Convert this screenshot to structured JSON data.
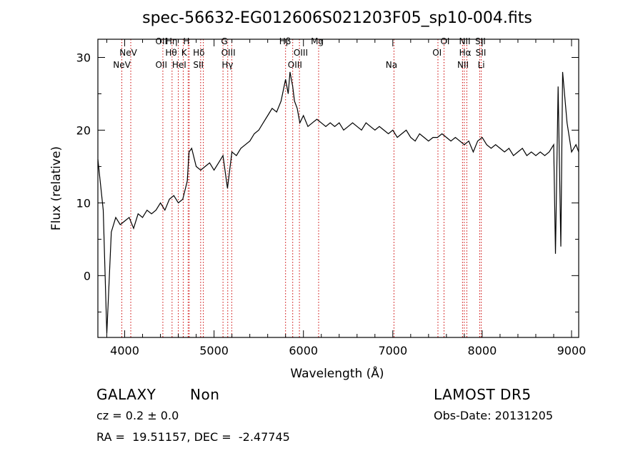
{
  "chart_data": {
    "type": "line",
    "title": "spec-56632-EG012606S021203F05_sp10-004.fits",
    "xlabel": "Wavelength (Å)",
    "ylabel": "Flux (relative)",
    "xlim": [
      3700,
      9080
    ],
    "ylim": [
      -8.5,
      32.5
    ],
    "xticks": [
      4000,
      5000,
      6000,
      7000,
      8000,
      9000
    ],
    "yticks": [
      0,
      10,
      20,
      30
    ],
    "grid": false,
    "series": [
      {
        "x": [
          3700,
          3760,
          3800,
          3850,
          3900,
          3950,
          4000,
          4050,
          4100,
          4150,
          4200,
          4250,
          4300,
          4350,
          4400,
          4450,
          4500,
          4550,
          4600,
          4650,
          4700,
          4720,
          4750,
          4800,
          4850,
          4900,
          4950,
          5000,
          5050,
          5100,
          5150,
          5200,
          5250,
          5300,
          5350,
          5400,
          5450,
          5500,
          5550,
          5600,
          5650,
          5700,
          5750,
          5800,
          5830,
          5850,
          5880,
          5900,
          5930,
          5960,
          6000,
          6050,
          6100,
          6150,
          6200,
          6250,
          6300,
          6350,
          6400,
          6450,
          6500,
          6550,
          6600,
          6650,
          6700,
          6750,
          6800,
          6850,
          6900,
          6950,
          7000,
          7050,
          7100,
          7150,
          7200,
          7250,
          7300,
          7350,
          7400,
          7450,
          7500,
          7550,
          7600,
          7650,
          7700,
          7750,
          7800,
          7850,
          7900,
          7950,
          8000,
          8050,
          8100,
          8150,
          8200,
          8250,
          8300,
          8350,
          8400,
          8450,
          8500,
          8550,
          8600,
          8650,
          8700,
          8750,
          8800,
          8820,
          8850,
          8880,
          8900,
          8950,
          9000,
          9050,
          9080
        ],
        "y": [
          16,
          9,
          -8,
          6,
          8,
          7,
          7.5,
          8,
          6.5,
          8.5,
          8,
          9,
          8.5,
          9,
          10,
          9,
          10.5,
          11,
          10,
          10.5,
          13,
          17,
          17.5,
          15,
          14.5,
          15,
          15.5,
          14.5,
          15.5,
          16.5,
          12,
          17,
          16.5,
          17.5,
          18,
          18.5,
          19.5,
          20,
          21,
          22,
          23,
          22.5,
          24,
          27,
          25,
          28,
          26,
          24,
          23,
          21,
          22,
          20.5,
          21,
          21.5,
          21,
          20.5,
          21,
          20.5,
          21,
          20,
          20.5,
          21,
          20.5,
          20,
          21,
          20.5,
          20,
          20.5,
          20,
          19.5,
          20,
          19,
          19.5,
          20,
          19,
          18.5,
          19.5,
          19,
          18.5,
          19,
          19,
          19.5,
          19,
          18.5,
          19,
          18.5,
          18,
          18.5,
          17,
          18.5,
          19,
          18,
          17.5,
          18,
          17.5,
          17,
          17.5,
          16.5,
          17,
          17.5,
          16.5,
          17,
          16.5,
          17,
          16.5,
          17,
          18,
          3,
          26,
          4,
          28,
          21,
          17,
          18,
          17
        ]
      }
    ],
    "annotations": [
      {
        "label": "NeV",
        "x": 3968,
        "row": 3
      },
      {
        "label": "NeV",
        "x": 4040,
        "row": 2
      },
      {
        "label": "OII",
        "x": 4410,
        "row": 3
      },
      {
        "label": "OII",
        "x": 4410,
        "row": 1
      },
      {
        "label": "Hη",
        "x": 4525,
        "row": 1
      },
      {
        "label": "Hθ",
        "x": 4520,
        "row": 2
      },
      {
        "label": "HeI",
        "x": 4610,
        "row": 3
      },
      {
        "label": "H",
        "x": 4690,
        "row": 1
      },
      {
        "label": "K",
        "x": 4665,
        "row": 2
      },
      {
        "label": "Hδ",
        "x": 4830,
        "row": 2
      },
      {
        "label": "SII",
        "x": 4825,
        "row": 3
      },
      {
        "label": "G",
        "x": 5115,
        "row": 1
      },
      {
        "label": "OIII",
        "x": 5160,
        "row": 2
      },
      {
        "label": "Hγ",
        "x": 5150,
        "row": 3
      },
      {
        "label": "Hβ",
        "x": 5795,
        "row": 1
      },
      {
        "label": "OIII",
        "x": 5970,
        "row": 2
      },
      {
        "label": "OIII",
        "x": 5905,
        "row": 3
      },
      {
        "label": "Mg",
        "x": 6155,
        "row": 1
      },
      {
        "label": "Na",
        "x": 6985,
        "row": 3
      },
      {
        "label": "OI",
        "x": 7495,
        "row": 2
      },
      {
        "label": "OI",
        "x": 7585,
        "row": 1
      },
      {
        "label": "NII",
        "x": 7805,
        "row": 1
      },
      {
        "label": "Hα",
        "x": 7810,
        "row": 2
      },
      {
        "label": "NII",
        "x": 7785,
        "row": 3
      },
      {
        "label": "SII",
        "x": 7980,
        "row": 1
      },
      {
        "label": "SII",
        "x": 7985,
        "row": 2
      },
      {
        "label": "Li",
        "x": 7990,
        "row": 3
      }
    ],
    "line_markers": [
      3968,
      4068,
      4427,
      4530,
      4600,
      4655,
      4710,
      4722,
      4850,
      4880,
      5100,
      5153,
      5198,
      5800,
      5880,
      5955,
      6170,
      7013,
      7505,
      7573,
      7780,
      7800,
      7828,
      7972,
      7990
    ],
    "line_color": "#cc0000"
  },
  "info": {
    "object_type": "GALAXY",
    "subclass": "Non",
    "cz": "cz = 0.2 ± 0.0",
    "coords": "RA =  19.51157, DEC =  -2.47745",
    "survey": "LAMOST DR5",
    "obs_date": "Obs-Date: 20131205"
  }
}
